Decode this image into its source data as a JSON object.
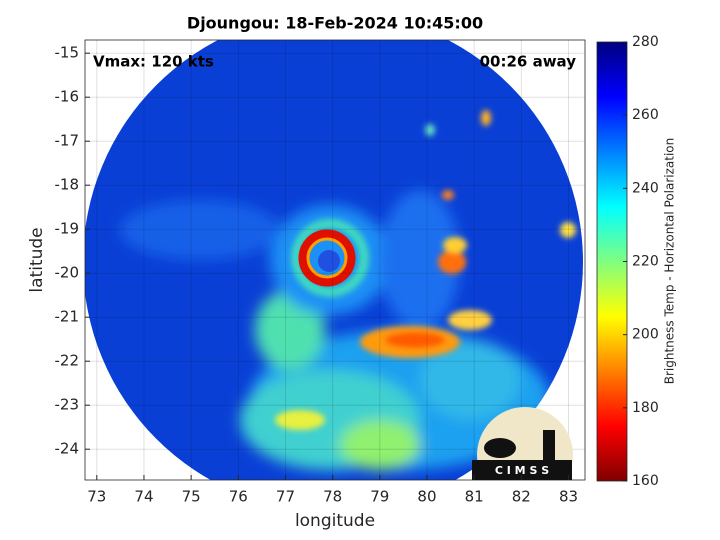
{
  "chart_data": {
    "type": "image",
    "title": "Djoungou: 18-Feb-2024 10:45:00",
    "xlabel": "longitude",
    "ylabel": "latitude",
    "annotations": [
      "Vmax: 120 kts",
      "00:26 away"
    ],
    "xlim": [
      72.75,
      83.35
    ],
    "ylim": [
      -24.7,
      -14.7
    ],
    "xticks": [
      73,
      74,
      75,
      76,
      77,
      78,
      79,
      80,
      81,
      82,
      83
    ],
    "yticks": [
      -24,
      -23,
      -22,
      -21,
      -20,
      -19,
      -18,
      -17,
      -16,
      -15
    ],
    "grid": true,
    "colorbar": {
      "label": "Brightness Temp - Horizontal Polarization",
      "colormap": "jet",
      "lim": [
        160,
        280
      ],
      "ticks": [
        160,
        180,
        200,
        220,
        240,
        260,
        280
      ]
    },
    "logo": "C I M S S"
  }
}
